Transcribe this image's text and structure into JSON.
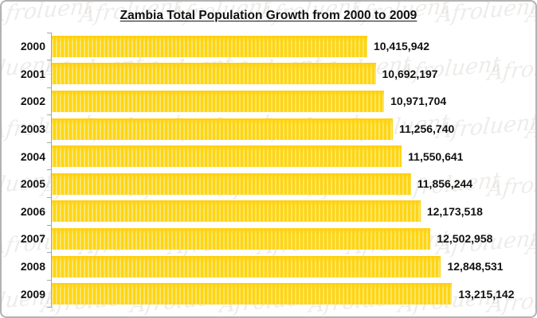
{
  "frame": {
    "background": "#ffffff",
    "border_color": "#b3b3b3"
  },
  "watermark": {
    "text": "Afroluent",
    "color": "#efedec"
  },
  "chart_data": {
    "type": "bar",
    "orientation": "horizontal",
    "title": "Zambia Total Population Growth from 2000 to 2009",
    "categories": [
      "2000",
      "2001",
      "2002",
      "2003",
      "2004",
      "2005",
      "2006",
      "2007",
      "2008",
      "2009"
    ],
    "values": [
      10415942,
      10692197,
      10971704,
      11256740,
      11550641,
      11856244,
      12173518,
      12502958,
      12848531,
      13215142
    ],
    "value_labels": [
      "10,415,942",
      "10,692,197",
      "10,971,704",
      "11,256,740",
      "11,550,641",
      "11,856,244",
      "12,173,518",
      "12,502,958",
      "12,848,531",
      "13,215,142"
    ],
    "xlim": [
      0,
      15800000
    ],
    "xlabel": "",
    "ylabel": "",
    "bar_color": "#ffd512",
    "bar_stripe_color": "#fae570",
    "axis_color": "#a6a6a6",
    "grid": false,
    "legend": "none",
    "value_labels_position": "right-of-bar"
  }
}
